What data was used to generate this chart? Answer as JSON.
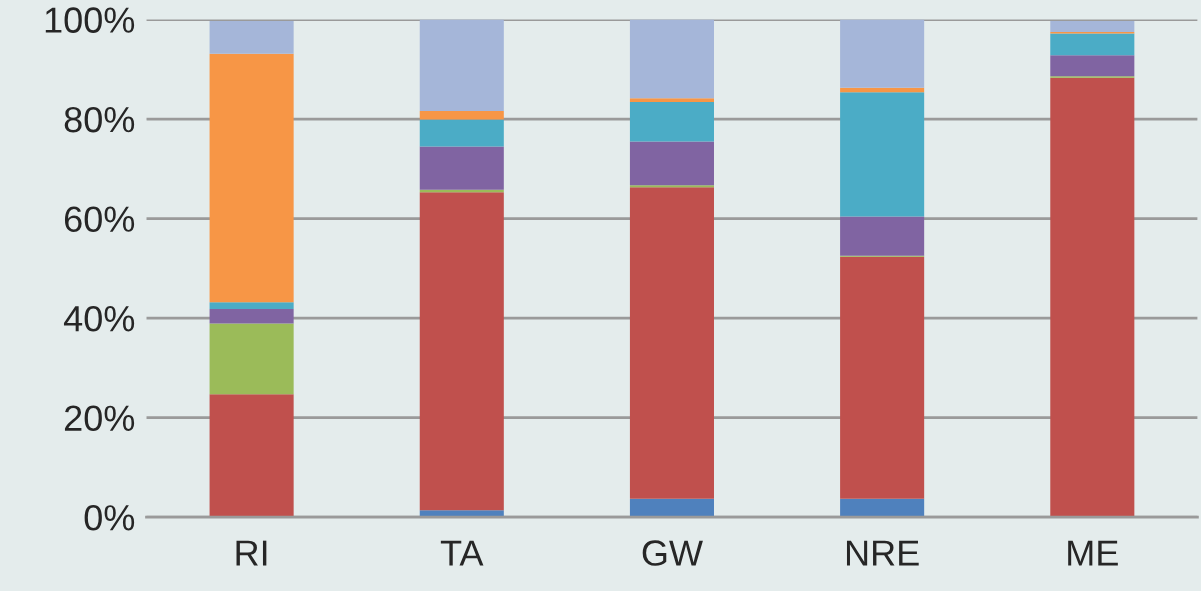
{
  "chart_data": {
    "type": "bar",
    "stacked": true,
    "categories": [
      "RI",
      "TA",
      "GW",
      "NRE",
      "ME"
    ],
    "series": [
      {
        "color": "#4f81bd",
        "values": [
          null,
          1.4,
          3.7,
          3.7,
          null
        ]
      },
      {
        "color": "#c0504d",
        "values": [
          24.7,
          63.9,
          62.6,
          48.6,
          88.3
        ]
      },
      {
        "color": "#9bbb59",
        "values": [
          14.2,
          0.5,
          0.4,
          0.2,
          0.3
        ]
      },
      {
        "color": "#8064a2",
        "values": [
          2.9,
          8.7,
          8.8,
          7.9,
          4.2
        ]
      },
      {
        "color": "#4bacc6",
        "values": [
          1.4,
          5.4,
          7.9,
          25.0,
          4.4
        ]
      },
      {
        "color": "#f79646",
        "values": [
          49.9,
          1.7,
          0.8,
          0.9,
          0.3
        ]
      },
      {
        "color": "#a5b6d9",
        "values": [
          6.6,
          18.4,
          15.8,
          13.7,
          2.2
        ]
      }
    ],
    "ylim": [
      0,
      100
    ],
    "yticks": [
      {
        "value": 0,
        "label": "0%"
      },
      {
        "value": 20,
        "label": "20%"
      },
      {
        "value": 40,
        "label": "40%"
      },
      {
        "value": 60,
        "label": "60%"
      },
      {
        "value": 80,
        "label": "80%"
      },
      {
        "value": 100,
        "label": "100%"
      }
    ],
    "grid": "y"
  }
}
